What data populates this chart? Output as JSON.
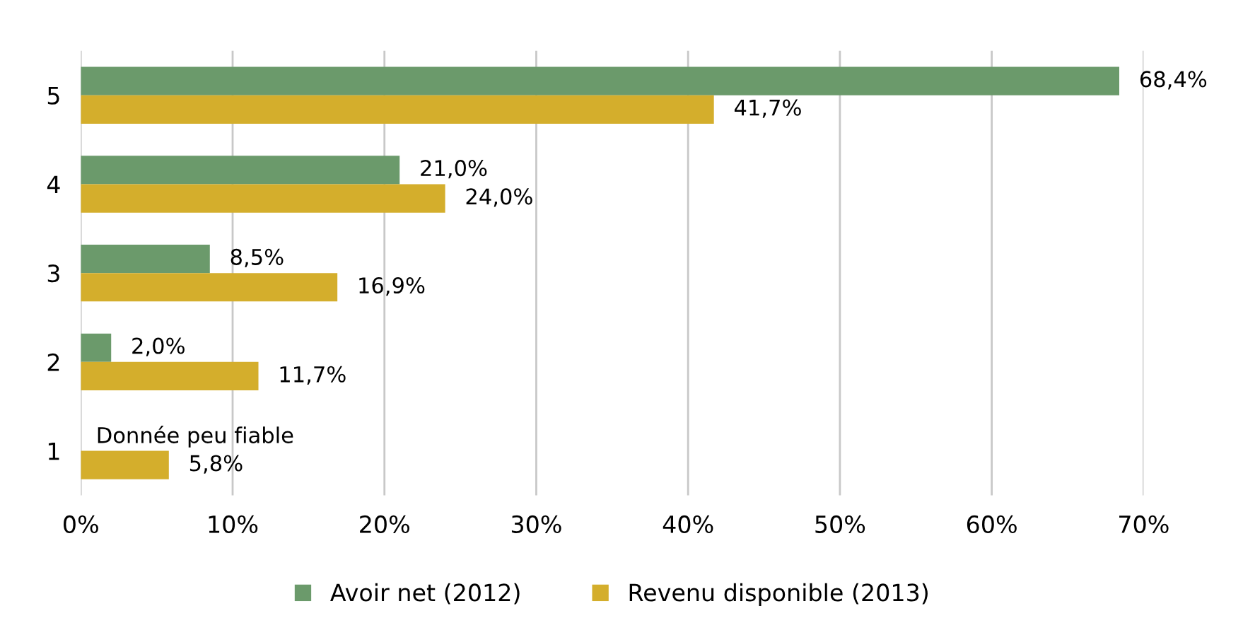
{
  "chart_data": {
    "type": "bar",
    "orientation": "horizontal",
    "categories": [
      "5",
      "4",
      "3",
      "2",
      "1"
    ],
    "series": [
      {
        "name": "Avoir net (2012)",
        "color": "#6b9a6b",
        "values": [
          68.4,
          21.0,
          8.5,
          2.0,
          null
        ],
        "value_labels": [
          "68,4%",
          "21,0%",
          "8,5%",
          "2,0%",
          null
        ]
      },
      {
        "name": "Revenu disponible (2013)",
        "color": "#d4ae2c",
        "values": [
          41.7,
          24.0,
          16.9,
          11.7,
          5.8
        ],
        "value_labels": [
          "41,7%",
          "24,0%",
          "16,9%",
          "11,7%",
          "5,8%"
        ]
      }
    ],
    "xlim": [
      0,
      70
    ],
    "xticks": [
      {
        "value": 0,
        "label": "0%"
      },
      {
        "value": 10,
        "label": "10%"
      },
      {
        "value": 20,
        "label": "20%"
      },
      {
        "value": 30,
        "label": "30%"
      },
      {
        "value": 40,
        "label": "40%"
      },
      {
        "value": 50,
        "label": "50%"
      },
      {
        "value": 60,
        "label": "60%"
      },
      {
        "value": 70,
        "label": "70%"
      }
    ],
    "annotations": [
      {
        "text": "Donnée peu fiable",
        "x": 1,
        "y": "1"
      }
    ],
    "grid": "x",
    "legend": "bottom"
  }
}
